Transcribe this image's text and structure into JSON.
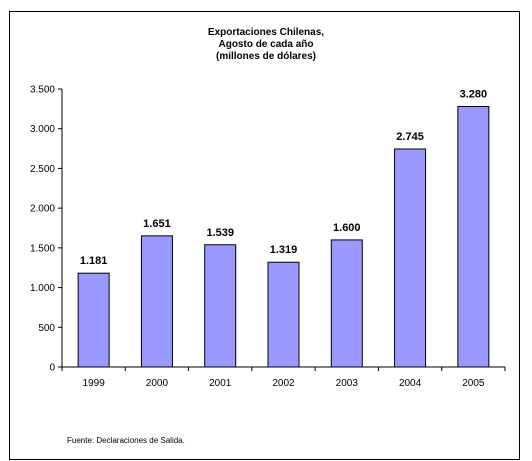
{
  "chart_data": {
    "type": "bar",
    "title_lines": [
      "Exportaciones Chilenas,",
      "Agosto de cada año",
      "(millones de dólares)"
    ],
    "categories": [
      "1999",
      "2000",
      "2001",
      "2002",
      "2003",
      "2004",
      "2005"
    ],
    "values": [
      1181,
      1651,
      1539,
      1319,
      1600,
      2745,
      3280
    ],
    "data_labels": [
      "1.181",
      "1.651",
      "1.539",
      "1.319",
      "1.600",
      "2.745",
      "3.280"
    ],
    "y_ticks": [
      0,
      500,
      1000,
      1500,
      2000,
      2500,
      3000,
      3500
    ],
    "y_tick_labels": [
      "0",
      "500",
      "1.000",
      "1.500",
      "2.000",
      "2.500",
      "3.000",
      "3.500"
    ],
    "ylim": [
      0,
      3500
    ],
    "grid": false,
    "legend": "none",
    "xlabel": "",
    "ylabel": "",
    "bar_color": "#9999ff",
    "bar_outline": "#000000"
  },
  "footnote": "Fuente: Declaraciones de Salida."
}
